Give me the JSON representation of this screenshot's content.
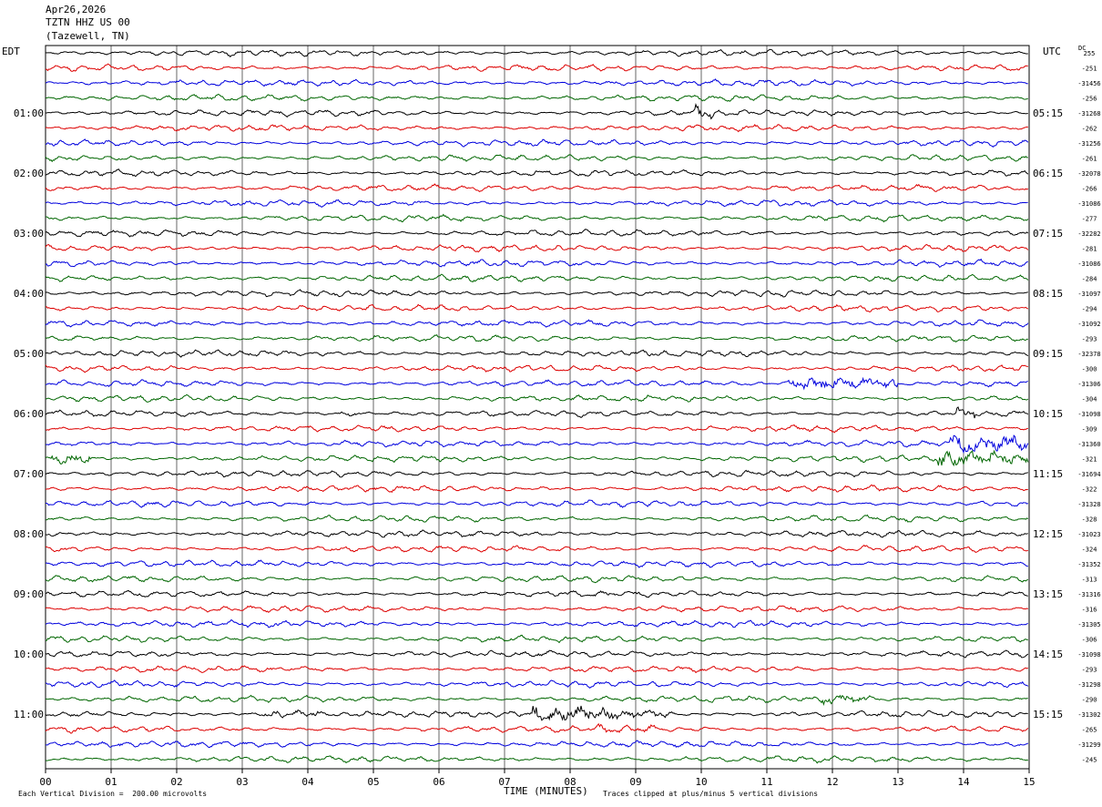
{
  "header": {
    "date": "Apr26,2026",
    "station": "TZTN HHZ US 00",
    "location": "(Tazewell, TN)"
  },
  "left_timezone": "EDT",
  "right_timezone": "UTC",
  "dc_label": "DC",
  "footer": {
    "scale_note": "Each Vertical Division =  200.00 microvolts",
    "clip_note": "Traces clipped at plus/minus 5 vertical divisions"
  },
  "colors": {
    "trace_cycle": [
      "#000000",
      "#dd0000",
      "#0000dd",
      "#006600"
    ],
    "grid": "#000000"
  },
  "chart_data": {
    "type": "line",
    "title": "Apr26,2026 TZTN HHZ US 00 (Tazewell, TN)",
    "xlabel": "TIME (MINUTES)",
    "x_range": [
      0,
      15
    ],
    "x_ticks": [
      "00",
      "01",
      "02",
      "03",
      "04",
      "05",
      "06",
      "07",
      "08",
      "09",
      "10",
      "11",
      "12",
      "13",
      "14",
      "15"
    ],
    "left_hour_labels": [
      "01:00",
      "02:00",
      "03:00",
      "04:00",
      "05:00",
      "06:00",
      "07:00",
      "08:00",
      "09:00",
      "10:00",
      "11:00"
    ],
    "right_hour_labels": [
      "05:15",
      "06:15",
      "07:15",
      "08:15",
      "09:15",
      "10:15",
      "11:15",
      "12:15",
      "13:15",
      "14:15",
      "15:15"
    ],
    "trace_count": 48,
    "dc_offsets": [
      "255",
      "-251",
      "-31456",
      "-256",
      "-31268",
      "-262",
      "-31256",
      "-261",
      "-32078",
      "-266",
      "-31086",
      "-277",
      "-32282",
      "-281",
      "-31086",
      "-284",
      "-31097",
      "-294",
      "-31092",
      "-293",
      "-32378",
      "-300",
      "-31306",
      "-304",
      "-31098",
      "-309",
      "-31360",
      "-321",
      "-31694",
      "-322",
      "-31328",
      "-328",
      "-31023",
      "-324",
      "-31352",
      "-313",
      "-31316",
      "-316",
      "-31305",
      "-306",
      "-31098",
      "-293",
      "-31298",
      "-290",
      "-31302",
      "-265",
      "-31299",
      "-245"
    ],
    "events": [
      {
        "trace": 4,
        "start_min": 9.9,
        "end_min": 10.2,
        "amplitude": 2.0
      },
      {
        "trace": 22,
        "start_min": 11.3,
        "end_min": 13.0,
        "amplitude": 3.0
      },
      {
        "trace": 24,
        "start_min": 4.4,
        "end_min": 4.8,
        "amplitude": 1.6
      },
      {
        "trace": 24,
        "start_min": 13.9,
        "end_min": 14.2,
        "amplitude": 2.0
      },
      {
        "trace": 26,
        "start_min": 13.8,
        "end_min": 15.0,
        "amplitude": 2.4
      },
      {
        "trace": 27,
        "start_min": 0.1,
        "end_min": 0.7,
        "amplitude": 2.2
      },
      {
        "trace": 27,
        "start_min": 13.6,
        "end_min": 15.0,
        "amplitude": 2.4
      },
      {
        "trace": 43,
        "start_min": 11.8,
        "end_min": 12.6,
        "amplitude": 1.8
      },
      {
        "trace": 44,
        "start_min": 3.3,
        "end_min": 4.2,
        "amplitude": 2.0
      },
      {
        "trace": 44,
        "start_min": 7.4,
        "end_min": 9.6,
        "amplitude": 2.4
      },
      {
        "trace": 45,
        "start_min": 8.4,
        "end_min": 9.3,
        "amplitude": 1.4
      }
    ]
  }
}
